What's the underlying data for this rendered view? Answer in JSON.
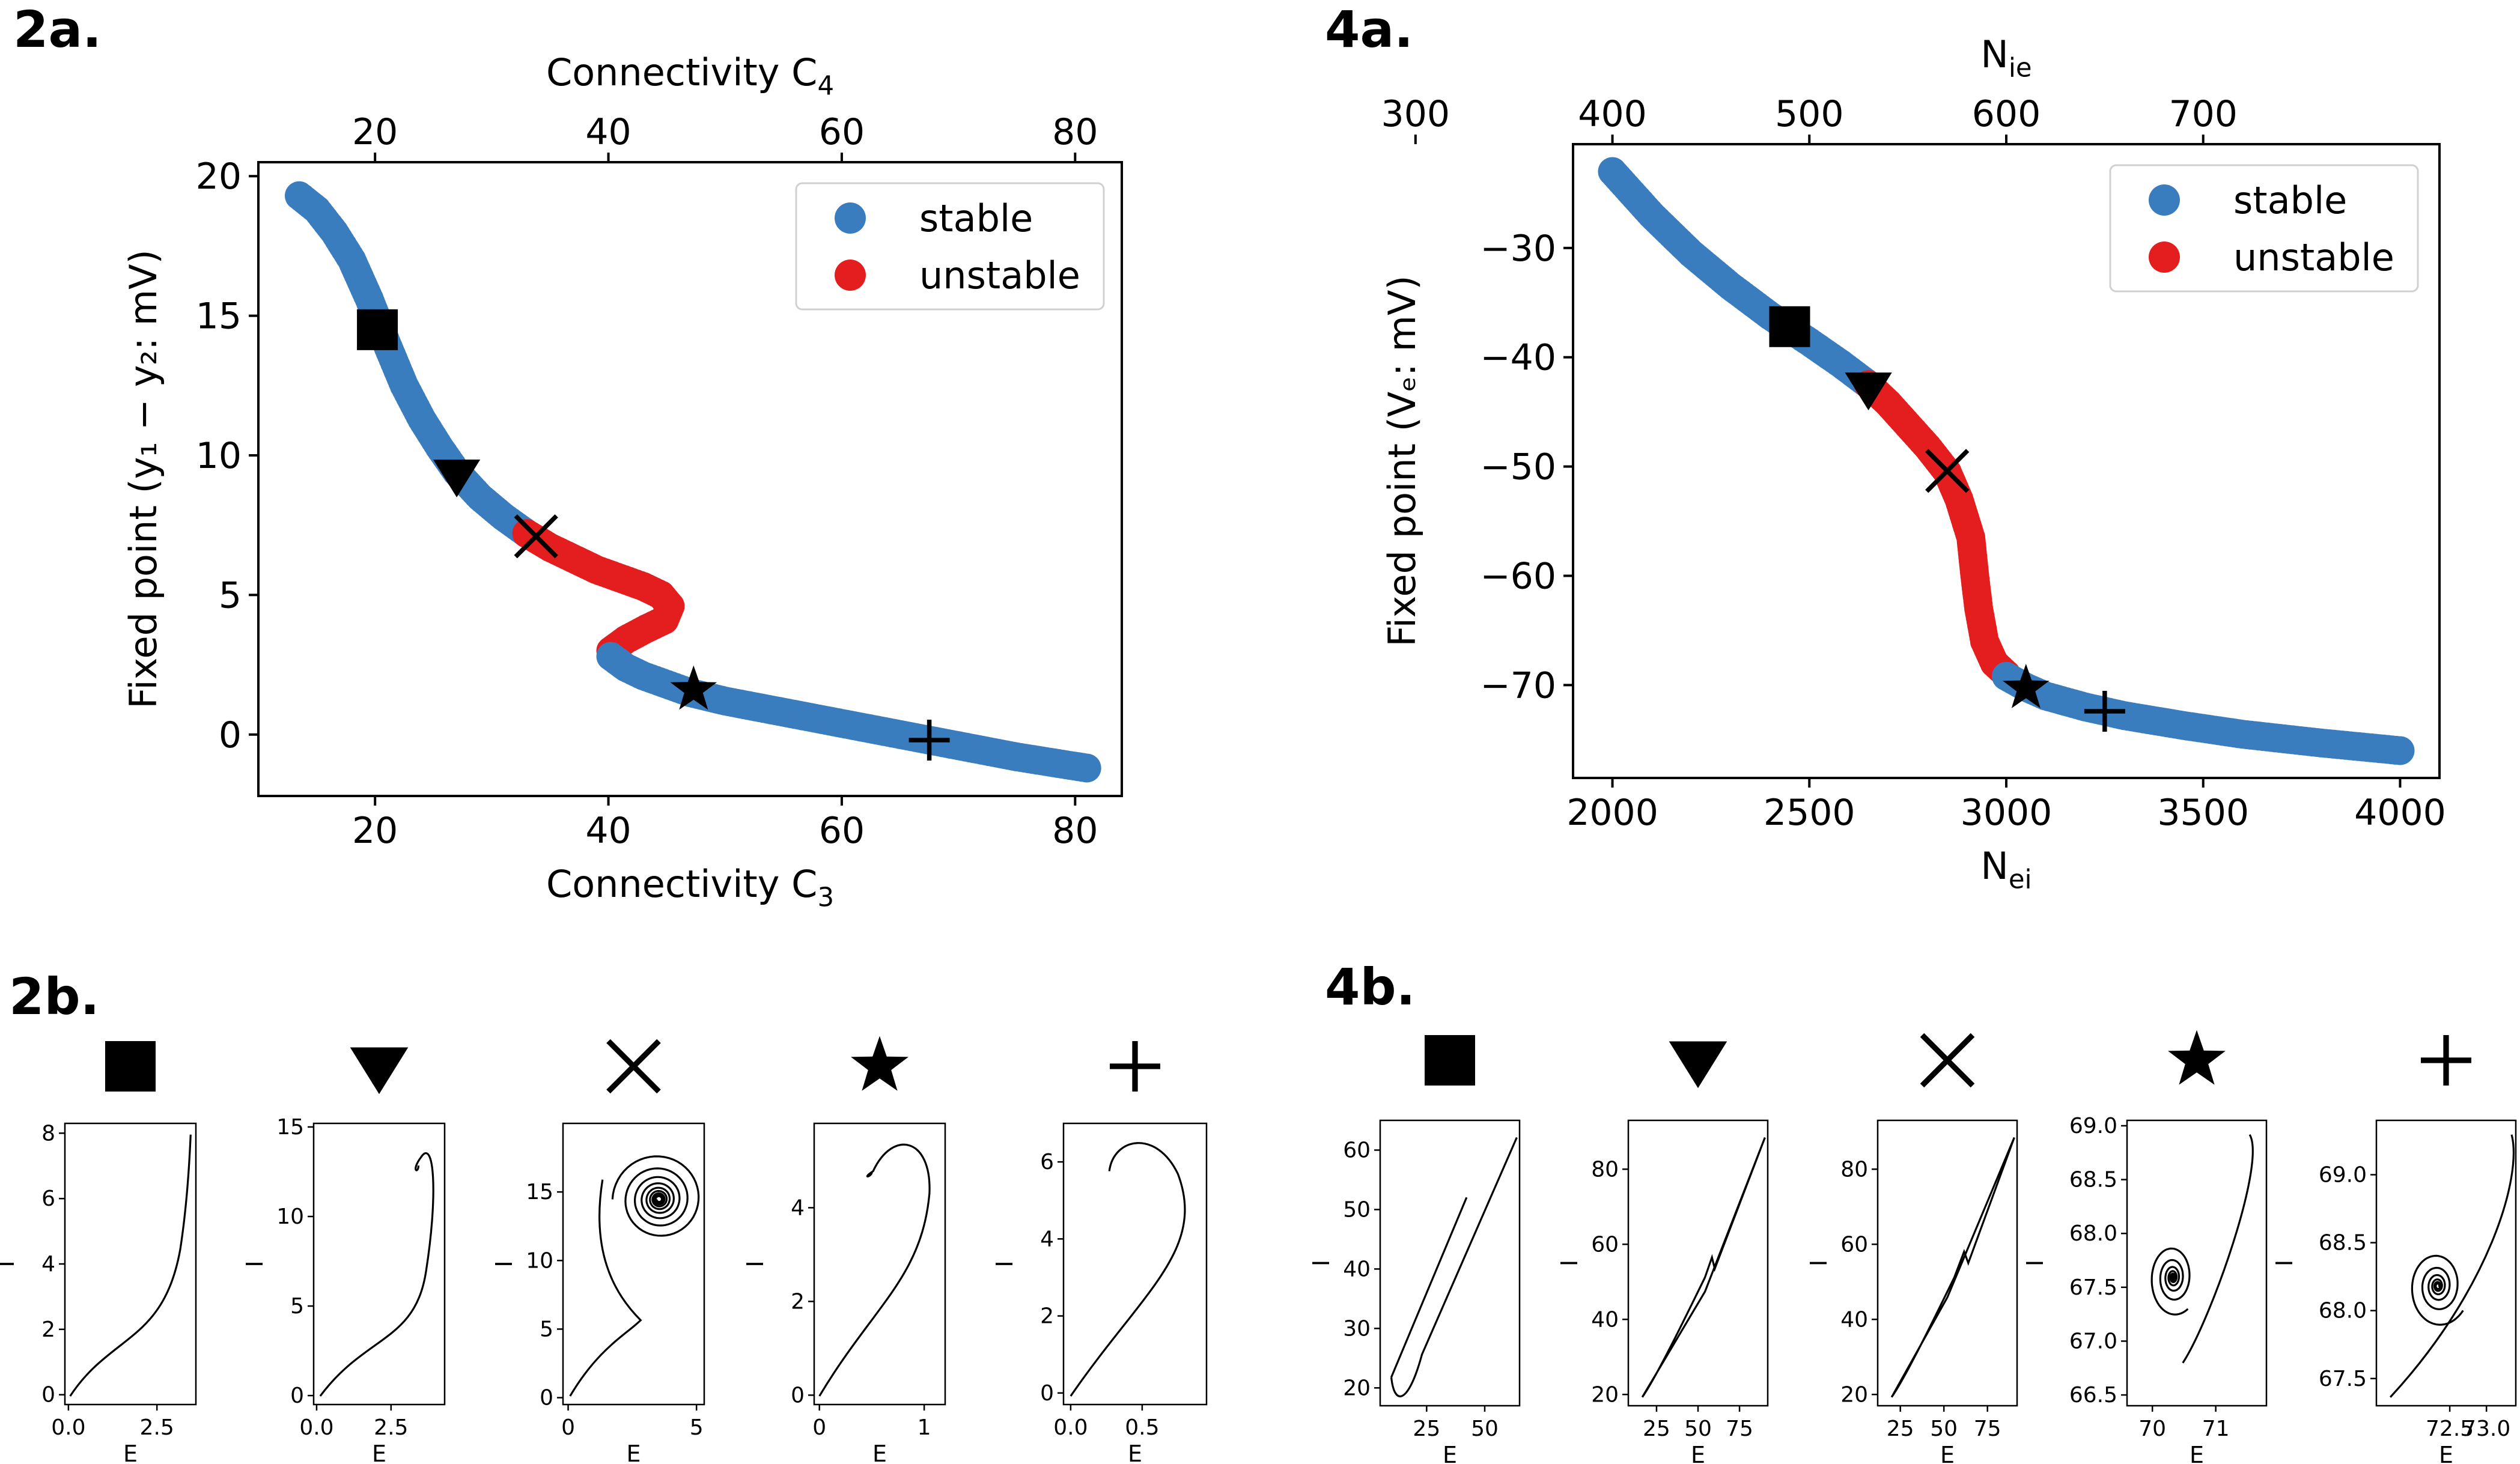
{
  "panels": {
    "p2a": "2a.",
    "p2b": "2b.",
    "p4a": "4a.",
    "p4b": "4b."
  },
  "marker_names": [
    "square",
    "triangle-down",
    "x",
    "star",
    "plus"
  ],
  "colors": {
    "stable": "#3a7dbf",
    "unstable": "#e41e1e",
    "marker": "#000000"
  },
  "chart_data": [
    {
      "id": "2a",
      "type": "scatter",
      "xlabel": "Connectivity C",
      "xlabel_sub": "3",
      "x2label": "Connectivity C",
      "x2label_sub": "4",
      "ylabel": "Fixed point (y₁ − y₂: mV)",
      "xlim": [
        10,
        84
      ],
      "ylim": [
        -2.2,
        20.5
      ],
      "xticks": [
        20,
        40,
        60,
        80
      ],
      "yticks": [
        0,
        5,
        10,
        15,
        20
      ],
      "x2ticks": [
        20,
        40,
        60,
        80
      ],
      "legend": {
        "placement": "top-right",
        "entries": [
          "stable",
          "unstable"
        ]
      },
      "series": [
        {
          "name": "stable",
          "points": [
            [
              13.5,
              19.3
            ],
            [
              15,
              18.8
            ],
            [
              16.5,
              18.0
            ],
            [
              18,
              17.0
            ],
            [
              19.5,
              15.6
            ],
            [
              21,
              14.0
            ],
            [
              22.5,
              12.5
            ],
            [
              24,
              11.3
            ],
            [
              25.5,
              10.3
            ],
            [
              27,
              9.4
            ],
            [
              29,
              8.5
            ],
            [
              31,
              7.8
            ],
            [
              33,
              7.2
            ]
          ]
        },
        {
          "name": "unstable",
          "points": [
            [
              33,
              7.2
            ],
            [
              35,
              6.7
            ],
            [
              37,
              6.3
            ],
            [
              39,
              5.9
            ],
            [
              41,
              5.6
            ],
            [
              43,
              5.3
            ],
            [
              44.5,
              5.0
            ],
            [
              45.3,
              4.6
            ],
            [
              44.8,
              4.1
            ],
            [
              43.3,
              3.8
            ],
            [
              41.5,
              3.4
            ],
            [
              40.2,
              3.0
            ]
          ]
        },
        {
          "name": "stable",
          "points": [
            [
              40.2,
              2.8
            ],
            [
              41.5,
              2.4
            ],
            [
              43,
              2.1
            ],
            [
              45,
              1.8
            ],
            [
              47,
              1.5
            ],
            [
              50,
              1.2
            ],
            [
              55,
              0.8
            ],
            [
              60,
              0.4
            ],
            [
              65,
              0.0
            ],
            [
              70,
              -0.4
            ],
            [
              75,
              -0.8
            ],
            [
              81,
              -1.2
            ]
          ]
        }
      ],
      "markers": [
        [
          20.2,
          14.5
        ],
        [
          27.0,
          9.3
        ],
        [
          33.8,
          7.1
        ],
        [
          47.3,
          1.6
        ],
        [
          67.5,
          -0.2
        ]
      ]
    },
    {
      "id": "4a",
      "type": "scatter",
      "xlabel": "N",
      "xlabel_sub": "ei",
      "x2label": "N",
      "x2label_sub": "ie",
      "ylabel": "Fixed point (Vₑ: mV)",
      "xlim": [
        1900,
        4100
      ],
      "ylim": [
        -78.5,
        -20.5
      ],
      "xticks": [
        2000,
        2500,
        3000,
        3500,
        4000
      ],
      "yticks": [
        -30,
        -40,
        -50,
        -60,
        -70
      ],
      "x2ticks": [
        300,
        400,
        500,
        600,
        700
      ],
      "x2_per_x": 0.2,
      "legend": {
        "placement": "top-right",
        "entries": [
          "stable",
          "unstable"
        ]
      },
      "series": [
        {
          "name": "stable",
          "points": [
            [
              2000,
              -23
            ],
            [
              2100,
              -27
            ],
            [
              2200,
              -30.5
            ],
            [
              2300,
              -33.5
            ],
            [
              2400,
              -36.2
            ],
            [
              2500,
              -38.6
            ],
            [
              2580,
              -40.6
            ],
            [
              2650,
              -42.5
            ]
          ]
        },
        {
          "name": "unstable",
          "points": [
            [
              2650,
              -42.5
            ],
            [
              2700,
              -44.2
            ],
            [
              2750,
              -46.2
            ],
            [
              2800,
              -48.2
            ],
            [
              2850,
              -50.5
            ],
            [
              2880,
              -53
            ],
            [
              2910,
              -56.5
            ],
            [
              2920,
              -60
            ],
            [
              2930,
              -63
            ],
            [
              2945,
              -66
            ],
            [
              2970,
              -68
            ],
            [
              3000,
              -69
            ]
          ]
        },
        {
          "name": "stable",
          "points": [
            [
              3000,
              -69.2
            ],
            [
              3050,
              -70.2
            ],
            [
              3100,
              -71.0
            ],
            [
              3200,
              -72.0
            ],
            [
              3300,
              -72.8
            ],
            [
              3450,
              -73.7
            ],
            [
              3600,
              -74.5
            ],
            [
              3800,
              -75.3
            ],
            [
              4000,
              -76.0
            ]
          ]
        }
      ],
      "markers": [
        [
          2450,
          -37.2
        ],
        [
          2650,
          -42.8
        ],
        [
          2850,
          -50.4
        ],
        [
          3050,
          -70.3
        ],
        [
          3250,
          -72.4
        ]
      ]
    }
  ],
  "phase_plots": [
    {
      "id": "2b-1",
      "xlabel": "E",
      "ylabel": "I",
      "xlim": [
        -0.1,
        3.6
      ],
      "ylim": [
        -0.3,
        8.3
      ],
      "xticks": [
        0.0,
        2.5
      ],
      "xtick_labels": [
        "0.0",
        "2.5"
      ],
      "yticks": [
        0,
        2,
        4,
        6,
        8
      ],
      "ytick_labels": [
        "0",
        "2",
        "4",
        "6",
        "8"
      ]
    },
    {
      "id": "2b-2",
      "xlabel": "E",
      "ylabel": "I",
      "xlim": [
        -0.1,
        4.3
      ],
      "ylim": [
        -0.5,
        15.2
      ],
      "xticks": [
        0.0,
        2.5
      ],
      "xtick_labels": [
        "0.0",
        "2.5"
      ],
      "yticks": [
        0,
        5,
        10,
        15
      ],
      "ytick_labels": [
        "0",
        "5",
        "10",
        "15"
      ]
    },
    {
      "id": "2b-3",
      "xlabel": "E",
      "ylabel": "I",
      "xlim": [
        -0.2,
        5.3
      ],
      "ylim": [
        -0.5,
        20
      ],
      "xticks": [
        0,
        5
      ],
      "xtick_labels": [
        "0",
        "5"
      ],
      "yticks": [
        0,
        5,
        10,
        15
      ],
      "ytick_labels": [
        "0",
        "5",
        "10",
        "15"
      ]
    },
    {
      "id": "2b-4",
      "xlabel": "E",
      "ylabel": "I",
      "xlim": [
        -0.05,
        1.2
      ],
      "ylim": [
        -0.2,
        5.8
      ],
      "xticks": [
        0,
        1
      ],
      "xtick_labels": [
        "0",
        "1"
      ],
      "yticks": [
        0,
        2,
        4
      ],
      "ytick_labels": [
        "0",
        "2",
        "4"
      ]
    },
    {
      "id": "2b-5",
      "xlabel": "E",
      "ylabel": "I",
      "xlim": [
        -0.05,
        0.95
      ],
      "ylim": [
        -0.3,
        7.0
      ],
      "xticks": [
        0.0,
        0.5
      ],
      "xtick_labels": [
        "0.0",
        "0.5"
      ],
      "yticks": [
        0,
        2,
        4,
        6
      ],
      "ytick_labels": [
        "0",
        "2",
        "4",
        "6"
      ]
    },
    {
      "id": "4b-1",
      "xlabel": "E",
      "ylabel": "I",
      "xlim": [
        5,
        65
      ],
      "ylim": [
        17,
        65
      ],
      "xticks": [
        25,
        50
      ],
      "xtick_labels": [
        "25",
        "50"
      ],
      "yticks": [
        20,
        30,
        40,
        50,
        60
      ],
      "ytick_labels": [
        "20",
        "30",
        "40",
        "50",
        "60"
      ]
    },
    {
      "id": "4b-2",
      "xlabel": "E",
      "ylabel": "I",
      "xlim": [
        8,
        92
      ],
      "ylim": [
        17,
        93
      ],
      "xticks": [
        25,
        50,
        75
      ],
      "xtick_labels": [
        "25",
        "50",
        "75"
      ],
      "yticks": [
        20,
        40,
        60,
        80
      ],
      "ytick_labels": [
        "20",
        "40",
        "60",
        "80"
      ]
    },
    {
      "id": "4b-3",
      "xlabel": "E",
      "ylabel": "I",
      "xlim": [
        12,
        92
      ],
      "ylim": [
        17,
        93
      ],
      "xticks": [
        25,
        50,
        75
      ],
      "xtick_labels": [
        "25",
        "50",
        "75"
      ],
      "yticks": [
        20,
        40,
        60,
        80
      ],
      "ytick_labels": [
        "20",
        "40",
        "60",
        "80"
      ]
    },
    {
      "id": "4b-4",
      "xlabel": "E",
      "ylabel": "I",
      "xlim": [
        69.6,
        71.8
      ],
      "ylim": [
        66.4,
        69.05
      ],
      "xticks": [
        70,
        71
      ],
      "xtick_labels": [
        "70",
        "71"
      ],
      "yticks": [
        66.5,
        67.0,
        67.5,
        68.0,
        68.5,
        69.0
      ],
      "ytick_labels": [
        "66.5",
        "67.0",
        "67.5",
        "68.0",
        "68.5",
        "69.0"
      ]
    },
    {
      "id": "4b-5",
      "xlabel": "E",
      "ylabel": "I",
      "xlim": [
        71.5,
        73.4
      ],
      "ylim": [
        67.3,
        69.4
      ],
      "xticks": [
        72.5,
        73.0
      ],
      "xtick_labels": [
        "72.5",
        "73.0"
      ],
      "yticks": [
        67.5,
        68.0,
        68.5,
        69.0
      ],
      "ytick_labels": [
        "67.5",
        "68.0",
        "68.5",
        "69.0"
      ]
    }
  ]
}
